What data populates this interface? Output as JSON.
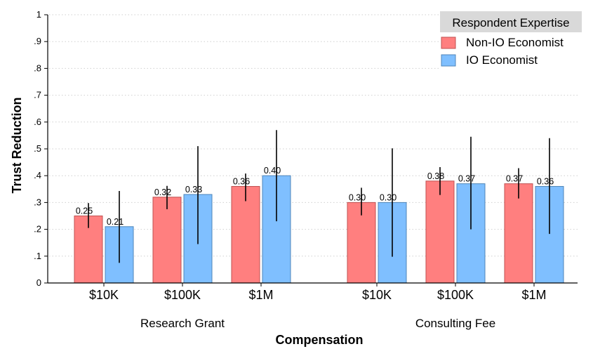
{
  "chart_data": {
    "type": "bar",
    "xlabel": "Compensation",
    "ylabel": "Trust Reduction",
    "ylim": [
      0,
      1
    ],
    "yticks": [
      "0",
      ".1",
      ".2",
      ".3",
      ".4",
      ".5",
      ".6",
      ".7",
      ".8",
      ".9",
      "1"
    ],
    "grid": true,
    "legend": {
      "title": "Respondent Expertise",
      "placement": "top-right",
      "entries": [
        "Non-IO Economist",
        "IO Economist"
      ]
    },
    "colors": {
      "Non-IO Economist": "#ff7f7f",
      "IO Economist": "#7fbfff",
      "bar_edge_red": "#c05050",
      "bar_edge_blue": "#4f86b8"
    },
    "groups": [
      {
        "name": "Research Grant",
        "categories": [
          "$10K",
          "$100K",
          "$1M"
        ],
        "series": [
          {
            "name": "Non-IO Economist",
            "values": [
              0.25,
              0.32,
              0.36
            ],
            "labels": [
              "0.25",
              "0.32",
              "0.36"
            ],
            "ci": [
              [
                0.205,
                0.298
              ],
              [
                0.275,
                0.362
              ],
              [
                0.305,
                0.408
              ]
            ]
          },
          {
            "name": "IO Economist",
            "values": [
              0.21,
              0.33,
              0.4
            ],
            "labels": [
              "0.21",
              "0.33",
              "0.40"
            ],
            "ci": [
              [
                0.075,
                0.343
              ],
              [
                0.145,
                0.51
              ],
              [
                0.23,
                0.57
              ]
            ]
          }
        ]
      },
      {
        "name": "Consulting Fee",
        "categories": [
          "$10K",
          "$100K",
          "$1M"
        ],
        "series": [
          {
            "name": "Non-IO Economist",
            "values": [
              0.3,
              0.38,
              0.37
            ],
            "labels": [
              "0.30",
              "0.38",
              "0.37"
            ],
            "ci": [
              [
                0.252,
                0.355
              ],
              [
                0.328,
                0.432
              ],
              [
                0.315,
                0.428
              ]
            ]
          },
          {
            "name": "IO Economist",
            "values": [
              0.3,
              0.37,
              0.36
            ],
            "labels": [
              "0.30",
              "0.37",
              "0.36"
            ],
            "ci": [
              [
                0.098,
                0.502
              ],
              [
                0.2,
                0.545
              ],
              [
                0.183,
                0.54
              ]
            ]
          }
        ]
      }
    ]
  }
}
